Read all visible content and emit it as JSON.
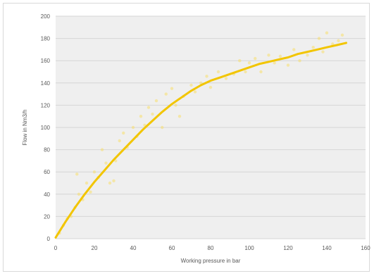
{
  "chart_data": {
    "type": "line",
    "title": "",
    "xlabel": "Working pressure in bar",
    "ylabel": "Flow in Nm3/h",
    "xlim": [
      0,
      160
    ],
    "ylim": [
      0,
      200
    ],
    "x_ticks": [
      0,
      20,
      40,
      60,
      80,
      100,
      120,
      140,
      160
    ],
    "y_ticks": [
      0,
      20,
      40,
      60,
      80,
      100,
      120,
      140,
      160,
      180,
      200
    ],
    "grid": "horizontal",
    "legend": "none",
    "colors": {
      "line": "#f2c500",
      "scatter": "#f7de6b",
      "plot_bg": "#efefef",
      "grid": "#d6d6d6"
    },
    "series": [
      {
        "values_x": [
          0,
          5,
          10,
          15,
          20,
          25,
          30,
          35,
          40,
          45,
          50,
          55,
          60,
          65,
          70,
          75,
          80,
          85,
          90,
          95,
          100,
          105,
          110,
          115,
          120,
          125,
          130,
          135,
          140,
          145,
          150
        ],
        "values_y": [
          1,
          15,
          28,
          40,
          51,
          61,
          71,
          80,
          89,
          98,
          106,
          114,
          121,
          127,
          133,
          138,
          142,
          145,
          148,
          151,
          154,
          157,
          159,
          161,
          163,
          166,
          168,
          170,
          172,
          174,
          176
        ]
      }
    ],
    "scatter_points": [
      [
        2,
        5
      ],
      [
        4,
        12
      ],
      [
        6,
        18
      ],
      [
        8,
        20
      ],
      [
        10,
        28
      ],
      [
        11,
        58
      ],
      [
        12,
        40
      ],
      [
        14,
        35
      ],
      [
        16,
        50
      ],
      [
        18,
        42
      ],
      [
        20,
        60
      ],
      [
        22,
        55
      ],
      [
        24,
        80
      ],
      [
        26,
        68
      ],
      [
        28,
        50
      ],
      [
        30,
        52
      ],
      [
        31,
        70
      ],
      [
        33,
        88
      ],
      [
        35,
        95
      ],
      [
        37,
        82
      ],
      [
        40,
        100
      ],
      [
        42,
        92
      ],
      [
        44,
        110
      ],
      [
        46,
        102
      ],
      [
        48,
        118
      ],
      [
        50,
        112
      ],
      [
        52,
        124
      ],
      [
        55,
        100
      ],
      [
        57,
        130
      ],
      [
        60,
        135
      ],
      [
        62,
        120
      ],
      [
        64,
        110
      ],
      [
        66,
        128
      ],
      [
        70,
        138
      ],
      [
        72,
        132
      ],
      [
        75,
        140
      ],
      [
        78,
        146
      ],
      [
        80,
        136
      ],
      [
        84,
        150
      ],
      [
        88,
        144
      ],
      [
        92,
        148
      ],
      [
        95,
        160
      ],
      [
        98,
        150
      ],
      [
        100,
        158
      ],
      [
        103,
        162
      ],
      [
        106,
        150
      ],
      [
        110,
        165
      ],
      [
        113,
        158
      ],
      [
        116,
        164
      ],
      [
        120,
        156
      ],
      [
        123,
        170
      ],
      [
        126,
        160
      ],
      [
        130,
        165
      ],
      [
        133,
        172
      ],
      [
        136,
        180
      ],
      [
        138,
        168
      ],
      [
        140,
        185
      ],
      [
        143,
        175
      ],
      [
        146,
        178
      ],
      [
        148,
        183
      ]
    ]
  }
}
